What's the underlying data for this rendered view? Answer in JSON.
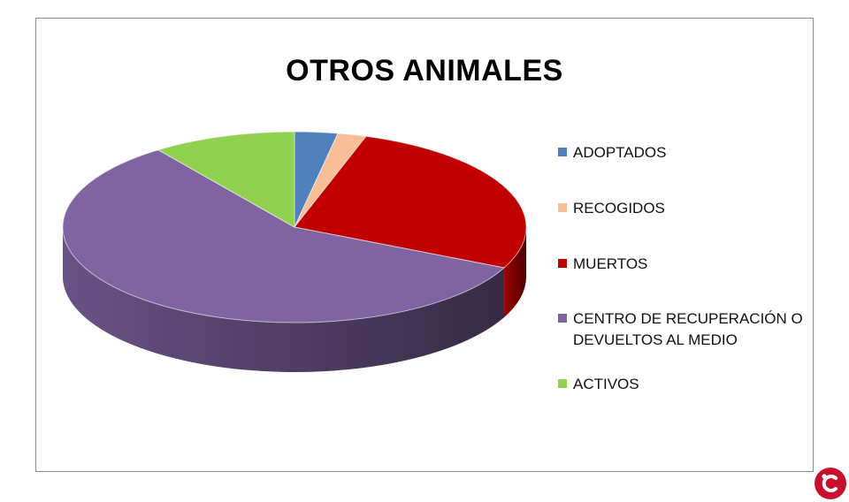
{
  "chart_data": {
    "type": "pie",
    "title": "OTROS ANIMALES",
    "style": "3d",
    "legend_position": "right",
    "categories": [
      "ADOPTADOS",
      "RECOGIDOS",
      "MUERTOS",
      "CENTRO DE RECUPERACIÓN O DEVUELTOS AL MEDIO",
      "ACTIVOS"
    ],
    "values": [
      3,
      2,
      27,
      58,
      10
    ],
    "colors": [
      "#4f81bd",
      "#f7be97",
      "#c00000",
      "#8064a2",
      "#92d050"
    ]
  },
  "brand": {
    "color": "#c8102e"
  }
}
